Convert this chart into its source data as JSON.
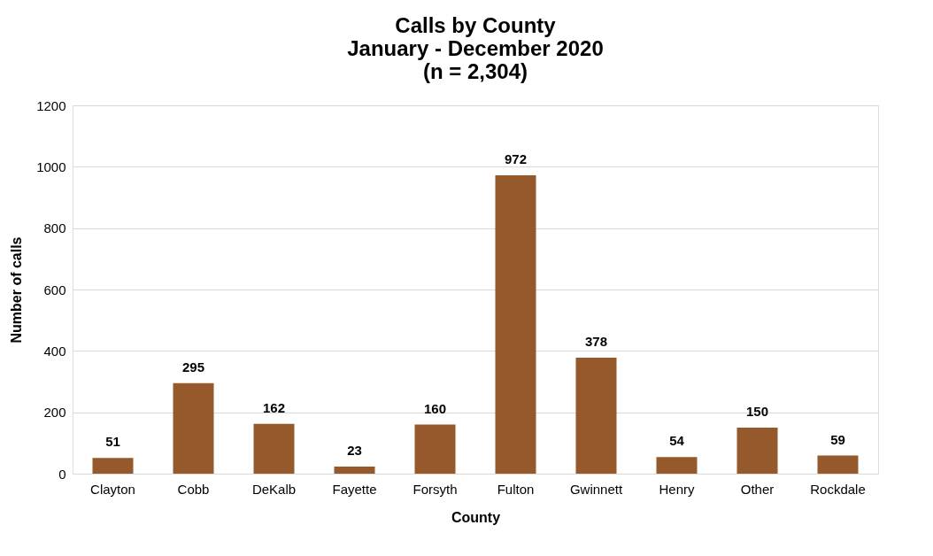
{
  "chart_data": {
    "type": "bar",
    "title": "Calls by County\nJanuary - December 2020\n(n = 2,304)",
    "xlabel": "County",
    "ylabel": "Number of calls",
    "categories": [
      "Clayton",
      "Cobb",
      "DeKalb",
      "Fayette",
      "Forsyth",
      "Fulton",
      "Gwinnett",
      "Henry",
      "Other",
      "Rockdale"
    ],
    "values": [
      51,
      295,
      162,
      23,
      160,
      972,
      378,
      54,
      150,
      59
    ],
    "color": "#95592b",
    "ylim": [
      0,
      1200
    ],
    "yticks": [
      0,
      200,
      400,
      600,
      800,
      1000,
      1200
    ],
    "grid": "y",
    "data_labels": true
  }
}
